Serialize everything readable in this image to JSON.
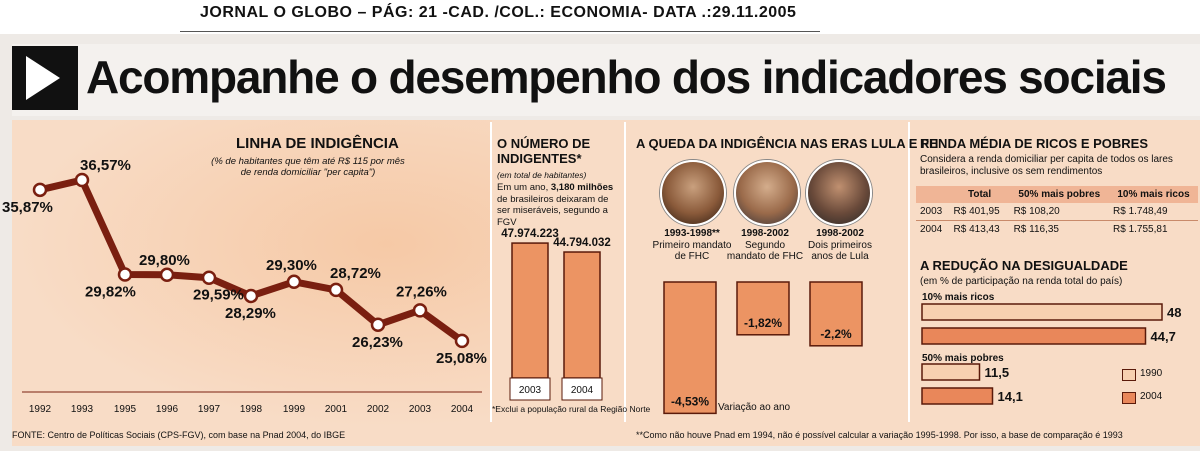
{
  "header": {
    "text": "JORNAL O GLOBO – PÁG: 21  -CAD. /COL.: ECONOMIA- DATA .:29.11.2005"
  },
  "headline": "Acompanhe o desempenho dos indicadores sociais",
  "colors": {
    "panel": "#f8dcc6",
    "line": "#7a1f10",
    "bar": "#ec9463",
    "bar_1990": "#f7d0b0",
    "bar_2004": "#e9875a"
  },
  "chart_data": [
    {
      "type": "line",
      "title": "LINHA DE INDIGÊNCIA",
      "subtitle": "(% de habitantes que têm até R$ 115 por mês de renda domiciliar \"per capita\")",
      "x": [
        "1992",
        "1993",
        "1995",
        "1996",
        "1997",
        "1998",
        "1999",
        "2001",
        "2002",
        "2003",
        "2004"
      ],
      "values": [
        35.87,
        36.57,
        29.82,
        29.8,
        29.59,
        28.29,
        29.3,
        28.72,
        26.23,
        27.26,
        25.08
      ],
      "labels": [
        "35,87%",
        "36,57%",
        "29,82%",
        "29,80%",
        "29,59%",
        "28,29%",
        "29,30%",
        "28,72%",
        "26,23%",
        "27,26%",
        "25,08%"
      ],
      "ylim": [
        23,
        38
      ]
    },
    {
      "type": "bar",
      "title": "O NÚMERO DE INDIGENTES*",
      "subtitle": "(em total de habitantes)",
      "note_pre": "Em um ano, ",
      "note_bold": "3,180 milhões",
      "note_post": " de brasileiros deixaram de ser miseráveis, segundo a FGV",
      "categories": [
        "2003",
        "2004"
      ],
      "values": [
        47974223,
        44794032
      ],
      "labels": [
        "47.974.223",
        "44.794.032"
      ],
      "footnote": "*Exclui a população rural da Região Norte"
    },
    {
      "type": "bar",
      "title": "A QUEDA DA INDIGÊNCIA NAS ERAS LULA E FH",
      "categories": [
        "1993-1998**",
        "1998-2002",
        "1998-2002"
      ],
      "captions": [
        "Primeiro mandato de FHC",
        "Segundo mandato de FHC",
        "Dois primeiros anos de Lula"
      ],
      "values": [
        -4.53,
        -1.82,
        -2.2
      ],
      "labels": [
        "-4,53%",
        "-1,82%",
        "-2,2%"
      ],
      "axis_note": "Variação ao ano"
    },
    {
      "type": "table",
      "title": "RENDA MÉDIA DE RICOS E POBRES",
      "subtitle": "Considera a renda domiciliar per capita de todos os lares brasileiros, inclusive os sem rendimentos",
      "columns": [
        "",
        "Total",
        "50% mais pobres",
        "10% mais ricos"
      ],
      "rows": [
        [
          "2003",
          "R$ 401,95",
          "R$ 108,20",
          "R$ 1.748,49"
        ],
        [
          "2004",
          "R$ 413,43",
          "R$ 116,35",
          "R$ 1.755,81"
        ]
      ]
    },
    {
      "type": "bar",
      "orientation": "horizontal",
      "title": "A REDUÇÃO NA DESIGUALDADE",
      "subtitle": "(em % de participação na renda total do país)",
      "groups": [
        {
          "name": "10% mais ricos",
          "values": [
            48,
            44.7
          ],
          "labels": [
            "48",
            "44,7"
          ]
        },
        {
          "name": "50% mais pobres",
          "values": [
            11.5,
            14.1
          ],
          "labels": [
            "11,5",
            "14,1"
          ]
        }
      ],
      "series": [
        "1990",
        "2004"
      ],
      "xlim": [
        0,
        50
      ]
    }
  ],
  "footer": {
    "source": "FONTE: Centro de Políticas Sociais (CPS-FGV), com base na Pnad 2004, do IBGE",
    "note": "**Como não houve Pnad em 1994, não é possível calcular a variação 1995-1998. Por isso, a base de comparação é 1993"
  }
}
